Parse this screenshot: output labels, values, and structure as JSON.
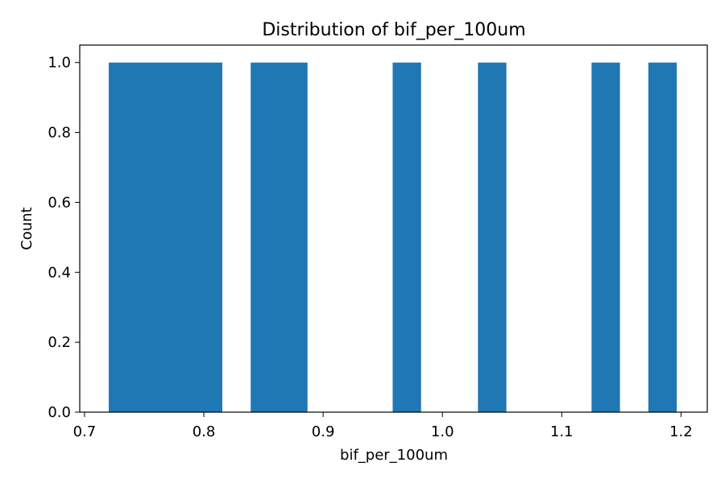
{
  "chart_data": {
    "type": "bar",
    "title": "Distribution of bif_per_100um",
    "xlabel": "bif_per_100um",
    "ylabel": "Count",
    "xlim": [
      0.696,
      1.222
    ],
    "ylim": [
      0,
      1.05
    ],
    "grid": false,
    "bar_color": "#1f77b4",
    "bins": [
      {
        "x0": 0.7203,
        "x1": 0.8155,
        "count": 1
      },
      {
        "x0": 0.8393,
        "x1": 0.8869,
        "count": 1
      },
      {
        "x0": 0.9583,
        "x1": 0.9821,
        "count": 1
      },
      {
        "x0": 1.0298,
        "x1": 1.0536,
        "count": 1
      },
      {
        "x0": 1.125,
        "x1": 1.1488,
        "count": 1
      },
      {
        "x0": 1.1726,
        "x1": 1.1964,
        "count": 1
      }
    ],
    "xticks": [
      {
        "value": 0.7,
        "label": "0.7"
      },
      {
        "value": 0.8,
        "label": "0.8"
      },
      {
        "value": 0.9,
        "label": "0.9"
      },
      {
        "value": 1.0,
        "label": "1.0"
      },
      {
        "value": 1.1,
        "label": "1.1"
      },
      {
        "value": 1.2,
        "label": "1.2"
      }
    ],
    "yticks": [
      {
        "value": 0.0,
        "label": "0.0"
      },
      {
        "value": 0.2,
        "label": "0.2"
      },
      {
        "value": 0.4,
        "label": "0.4"
      },
      {
        "value": 0.6,
        "label": "0.6"
      },
      {
        "value": 0.8,
        "label": "0.8"
      },
      {
        "value": 1.0,
        "label": "1.0"
      }
    ]
  }
}
